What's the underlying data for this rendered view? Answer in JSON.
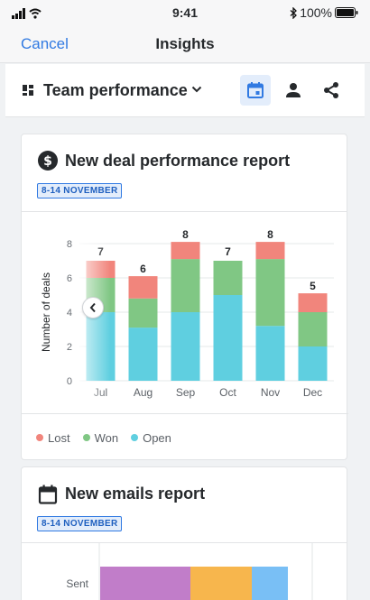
{
  "status_bar": {
    "time": "9:41",
    "battery": "100%"
  },
  "nav": {
    "cancel_label": "Cancel",
    "title": "Insights"
  },
  "toolbar": {
    "dashboard_title": "Team performance"
  },
  "deal_card": {
    "title": "New deal performance report",
    "date_badge": "8-14 NOVEMBER",
    "legend": [
      {
        "label": "Lost",
        "color": "#f1857c"
      },
      {
        "label": "Won",
        "color": "#80c784"
      },
      {
        "label": "Open",
        "color": "#5fcfe0"
      }
    ]
  },
  "email_card": {
    "title": "New emails report",
    "date_badge": "8-14 NOVEMBER",
    "bar_label": "Sent",
    "segment_colors": [
      "#c17dc9",
      "#f7b64d",
      "#79bff5"
    ]
  },
  "chart_data": {
    "type": "bar",
    "stacked": true,
    "categories": [
      "Jul",
      "Aug",
      "Sep",
      "Oct",
      "Nov",
      "Dec"
    ],
    "ylabel": "Number of deals",
    "ylim": [
      0,
      8
    ],
    "yticks": [
      0,
      2,
      4,
      6,
      8
    ],
    "totals": [
      7,
      6,
      8,
      7,
      8,
      5
    ],
    "series": [
      {
        "name": "Open",
        "color": "#5fcfe0",
        "values": [
          4,
          3.1,
          4,
          5,
          3.2,
          2
        ]
      },
      {
        "name": "Won",
        "color": "#80c784",
        "values": [
          2,
          1.7,
          3.1,
          2,
          3.9,
          2
        ]
      },
      {
        "name": "Lost",
        "color": "#f1857c",
        "values": [
          1,
          1.3,
          1,
          0,
          1,
          1.1
        ]
      }
    ]
  }
}
